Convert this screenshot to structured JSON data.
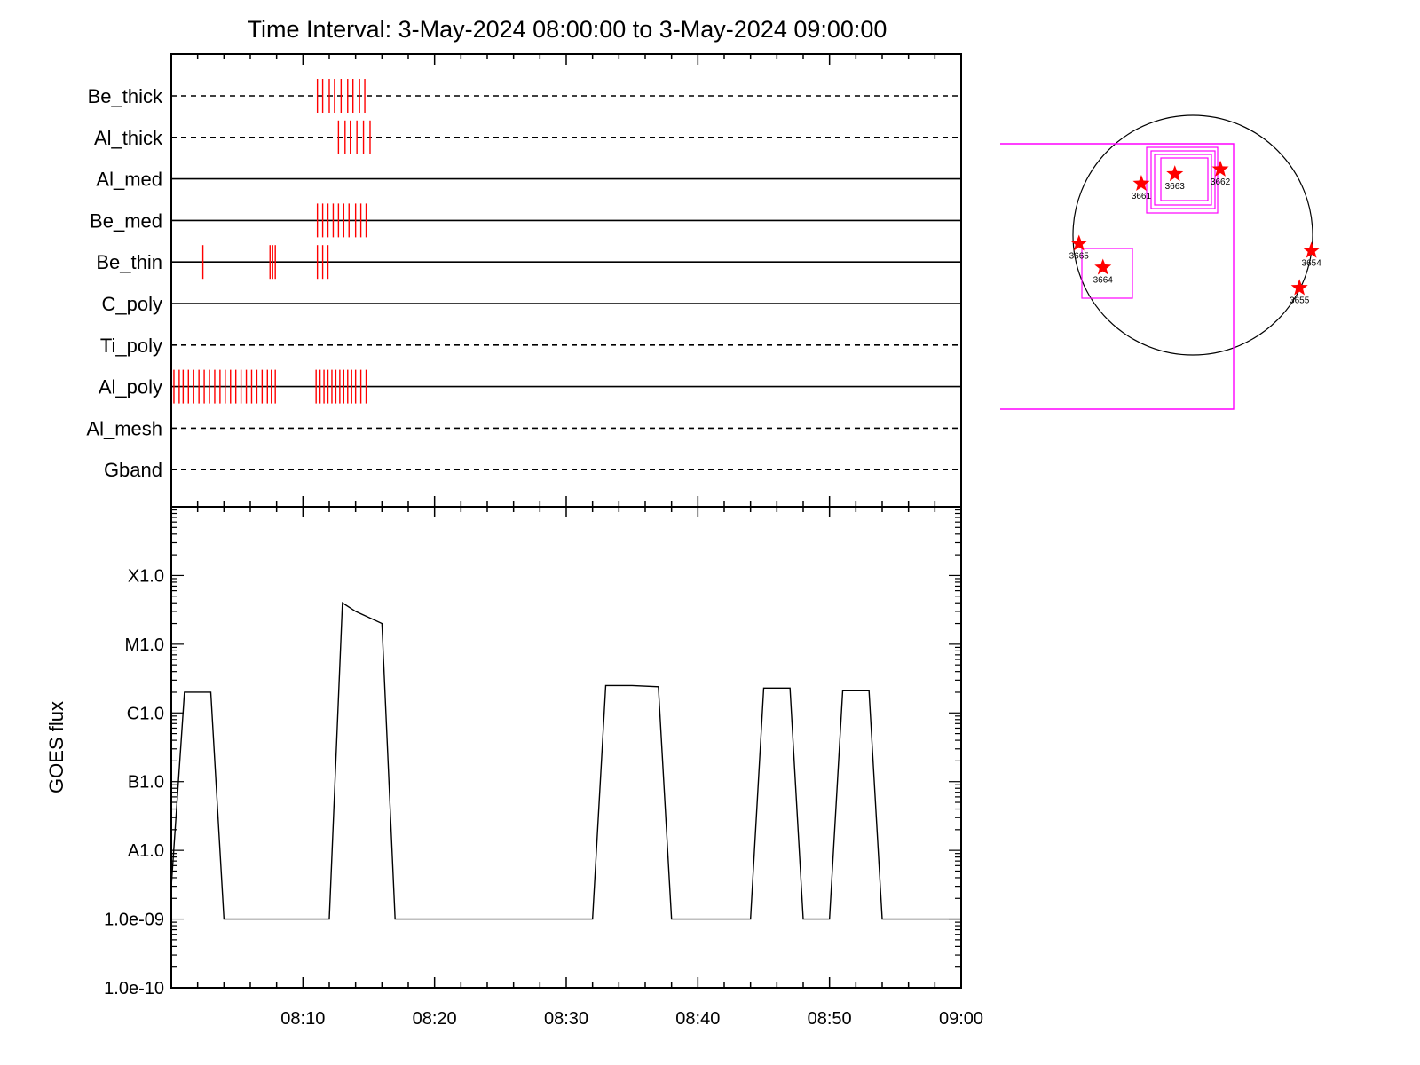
{
  "chart_data": [
    {
      "type": "event-timeline",
      "title": "Time Interval:  3-May-2024 08:00:00 to  3-May-2024 09:00:00",
      "x_unit": "minutes after 08:00",
      "xlim": [
        0,
        60
      ],
      "rows": [
        {
          "name": "Be_thick",
          "style": "dashed",
          "events": [
            11.1,
            11.5,
            12.0,
            12.4,
            12.9,
            13.4,
            13.8,
            14.3,
            14.7
          ]
        },
        {
          "name": "Al_thick",
          "style": "dashed",
          "events": [
            12.7,
            13.2,
            13.6,
            14.1,
            14.6,
            15.1
          ]
        },
        {
          "name": "Al_med",
          "style": "solid",
          "events": []
        },
        {
          "name": "Be_med",
          "style": "solid",
          "events": [
            11.1,
            11.5,
            11.9,
            12.3,
            12.7,
            13.1,
            13.5,
            14.0,
            14.4,
            14.8
          ]
        },
        {
          "name": "Be_thin",
          "style": "solid",
          "events": [
            2.4,
            7.5,
            7.7,
            7.9,
            11.1,
            11.5,
            11.9
          ]
        },
        {
          "name": "C_poly",
          "style": "solid",
          "events": []
        },
        {
          "name": "Ti_poly",
          "style": "dashed",
          "events": []
        },
        {
          "name": "Al_poly",
          "style": "solid",
          "events": [
            0.2,
            0.6,
            0.9,
            1.3,
            1.7,
            2.1,
            2.5,
            2.9,
            3.3,
            3.7,
            4.1,
            4.5,
            4.9,
            5.3,
            5.7,
            6.1,
            6.5,
            6.9,
            7.3,
            7.6,
            7.9,
            11.0,
            11.3,
            11.6,
            11.9,
            12.2,
            12.5,
            12.8,
            13.1,
            13.4,
            13.7,
            14.0,
            14.4,
            14.8
          ]
        },
        {
          "name": "Al_mesh",
          "style": "dashed",
          "events": []
        },
        {
          "name": "Gband",
          "style": "dashed",
          "events": []
        }
      ],
      "colors": {
        "events": "#ff0000",
        "lines": "#000000"
      }
    },
    {
      "type": "line",
      "ylabel": "GOES flux",
      "yscale": "log",
      "ylim": [
        1e-10,
        0.001
      ],
      "y_ticks": [
        {
          "value": 1e-10,
          "label": "1.0e-10"
        },
        {
          "value": 1e-09,
          "label": "1.0e-09"
        },
        {
          "value": 1e-08,
          "label": "A1.0"
        },
        {
          "value": 1e-07,
          "label": "B1.0"
        },
        {
          "value": 1e-06,
          "label": "C1.0"
        },
        {
          "value": 1e-05,
          "label": "M1.0"
        },
        {
          "value": 0.0001,
          "label": "X1.0"
        }
      ],
      "xlim": [
        0,
        60
      ],
      "x_ticks": [
        {
          "value": 10,
          "label": "08:10"
        },
        {
          "value": 20,
          "label": "08:20"
        },
        {
          "value": 30,
          "label": "08:30"
        },
        {
          "value": 40,
          "label": "08:40"
        },
        {
          "value": 50,
          "label": "08:50"
        },
        {
          "value": 60,
          "label": "09:00"
        }
      ],
      "series": [
        {
          "x": [
            0,
            1.0,
            2.0,
            3.0,
            4.0,
            12.0,
            13.0,
            14.0,
            16.0,
            17.0,
            32.0,
            33.0,
            35.0,
            37.0,
            38.0,
            44.0,
            45.0,
            47.0,
            48.0,
            50.0,
            51.0,
            53.0,
            54.0,
            60.0
          ],
          "y": [
            3e-09,
            2e-06,
            2e-06,
            2e-06,
            1e-09,
            1e-09,
            4e-05,
            3e-05,
            2e-05,
            1e-09,
            1e-09,
            2.5e-06,
            2.5e-06,
            2.4e-06,
            1e-09,
            1e-09,
            2.3e-06,
            2.3e-06,
            1e-09,
            1e-09,
            2.1e-06,
            2.1e-06,
            1e-09,
            1e-09
          ]
        }
      ]
    },
    {
      "type": "diagram",
      "active_regions": [
        {
          "label": "3661",
          "x": -0.43,
          "y": 0.43
        },
        {
          "label": "3663",
          "x": -0.15,
          "y": 0.51
        },
        {
          "label": "3662",
          "x": 0.23,
          "y": 0.55
        },
        {
          "label": "3665",
          "x": -0.95,
          "y": -0.07
        },
        {
          "label": "3664",
          "x": -0.75,
          "y": -0.27
        },
        {
          "label": "3654",
          "x": 0.99,
          "y": -0.13
        },
        {
          "label": "3655",
          "x": 0.89,
          "y": -0.44
        }
      ],
      "colors": {
        "disk": "#000000",
        "boxes": "#ff00ff",
        "stars": "#ff0000"
      }
    }
  ]
}
